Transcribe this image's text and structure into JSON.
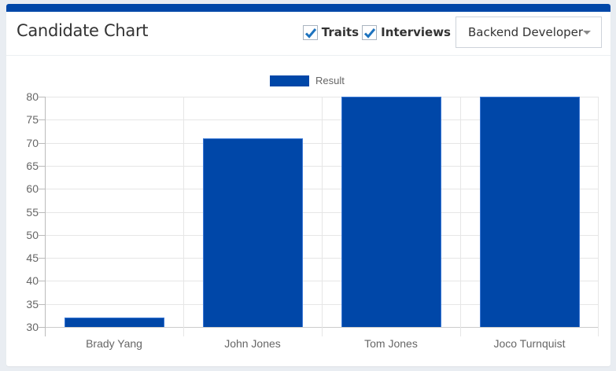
{
  "card": {
    "title": "Candidate Chart",
    "controls": {
      "traits": {
        "label": "Traits",
        "checked": true
      },
      "interviews": {
        "label": "Interviews",
        "checked": true
      },
      "role_select": {
        "value": "Backend Developer"
      }
    }
  },
  "colors": {
    "accent": "#0047a8",
    "bar": "#0047a8"
  },
  "chart": {
    "legend": "Result",
    "y_ticks": [
      "80",
      "75",
      "70",
      "65",
      "60",
      "55",
      "50",
      "45",
      "40",
      "35",
      "30"
    ],
    "categories": [
      "Brady Yang",
      "John Jones",
      "Tom Jones",
      "Joco Turnquist"
    ]
  },
  "chart_data": {
    "type": "bar",
    "title": "Candidate Chart",
    "categories": [
      "Brady Yang",
      "John Jones",
      "Tom Jones",
      "Joco Turnquist"
    ],
    "series": [
      {
        "name": "Result",
        "values": [
          32,
          71,
          80,
          80
        ]
      }
    ],
    "xlabel": "",
    "ylabel": "",
    "ylim": [
      30,
      80
    ],
    "y_ticks": [
      30,
      35,
      40,
      45,
      50,
      55,
      60,
      65,
      70,
      75,
      80
    ],
    "grid": true,
    "legend_position": "top",
    "notes": "Tom Jones and Joco Turnquist bars reach/clip at the axis max of 80"
  }
}
